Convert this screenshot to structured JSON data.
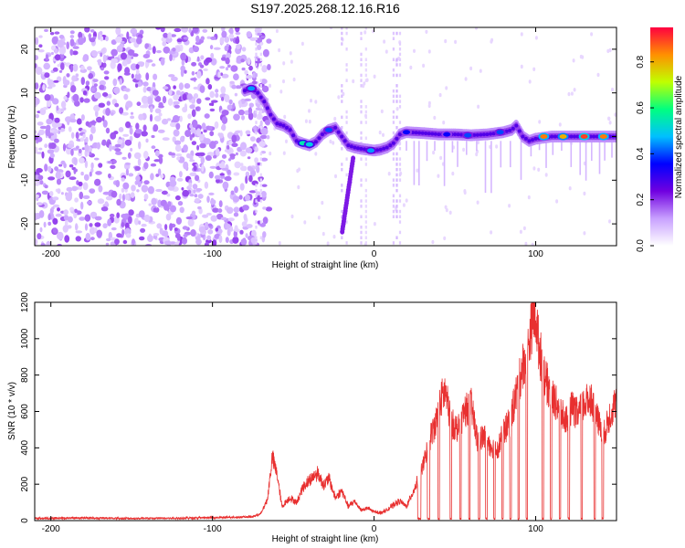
{
  "title": "S197.2025.268.12.16.R16",
  "chart_data": [
    {
      "type": "heatmap",
      "title": "S197.2025.268.12.16.R16",
      "xlabel": "Height of straight line (km)",
      "ylabel": "Frequency (Hz)",
      "xlim": [
        -210,
        150
      ],
      "ylim": [
        -25,
        25
      ],
      "xticks": [
        -200,
        -100,
        0,
        100
      ],
      "xticklabels": [
        "-200",
        "-100",
        "0",
        "100"
      ],
      "yticks": [
        -20,
        -10,
        0,
        10,
        20
      ],
      "yticklabels": [
        "-20",
        "-10",
        "0",
        "10",
        "20"
      ],
      "colorbar": {
        "label": "Normalized spectral amplitude",
        "range": [
          0.0,
          0.95
        ],
        "ticks": [
          0.0,
          0.2,
          0.4,
          0.6,
          0.8
        ],
        "ticklabels": [
          "0.0",
          "0.2",
          "0.4",
          "0.6",
          "0.8"
        ],
        "colormap": [
          "#ffffff",
          "#c8a0ff",
          "#7000e0",
          "#0000ff",
          "#00c0ff",
          "#00ff80",
          "#c0ff00",
          "#ff9000",
          "#ff0040"
        ]
      },
      "noise_region_x": [
        -210,
        -65
      ],
      "ridge": [
        [
          -80,
          10.5
        ],
        [
          -76,
          11.0
        ],
        [
          -72,
          10.0
        ],
        [
          -68,
          8.0
        ],
        [
          -64,
          5.0
        ],
        [
          -60,
          3.0
        ],
        [
          -56,
          2.5
        ],
        [
          -52,
          1.5
        ],
        [
          -48,
          -1.0
        ],
        [
          -44,
          -1.6
        ],
        [
          -40,
          -2.0
        ],
        [
          -36,
          -1.2
        ],
        [
          -32,
          0.5
        ],
        [
          -28,
          1.5
        ],
        [
          -24,
          2.0
        ],
        [
          -20,
          0.0
        ],
        [
          -16,
          -2.0
        ],
        [
          -12,
          -2.5
        ],
        [
          -8,
          -2.8
        ],
        [
          -4,
          -3.0
        ],
        [
          0,
          -3.2
        ],
        [
          4,
          -3.0
        ],
        [
          8,
          -2.5
        ],
        [
          12,
          -1.5
        ],
        [
          16,
          0.5
        ],
        [
          20,
          1.0
        ],
        [
          30,
          0.8
        ],
        [
          40,
          0.5
        ],
        [
          50,
          0.5
        ],
        [
          60,
          0.3
        ],
        [
          70,
          0.5
        ],
        [
          80,
          1.0
        ],
        [
          85,
          1.5
        ],
        [
          88,
          2.5
        ],
        [
          92,
          0.0
        ],
        [
          96,
          -1.0
        ],
        [
          100,
          -0.5
        ],
        [
          110,
          0.0
        ],
        [
          120,
          0.0
        ],
        [
          130,
          0.0
        ],
        [
          140,
          0.0
        ],
        [
          150,
          0.0
        ]
      ],
      "hotspots": [
        {
          "x": -76,
          "y": 11,
          "v": 0.45
        },
        {
          "x": -44,
          "y": -1.5,
          "v": 0.55
        },
        {
          "x": -40,
          "y": -1.8,
          "v": 0.5
        },
        {
          "x": -28,
          "y": 1.5,
          "v": 0.4
        },
        {
          "x": -2,
          "y": -3.2,
          "v": 0.45
        },
        {
          "x": 20,
          "y": 1,
          "v": 0.35
        },
        {
          "x": 45,
          "y": 0.5,
          "v": 0.35
        },
        {
          "x": 58,
          "y": 0.3,
          "v": 0.4
        },
        {
          "x": 78,
          "y": 1,
          "v": 0.4
        },
        {
          "x": 105,
          "y": 0,
          "v": 0.85
        },
        {
          "x": 117,
          "y": 0,
          "v": 0.8
        },
        {
          "x": 130,
          "y": 0,
          "v": 0.9
        },
        {
          "x": 142,
          "y": 0,
          "v": 0.85
        }
      ]
    },
    {
      "type": "line",
      "xlabel": "Height of straight line (km)",
      "ylabel": "SNR (10 * v/v)",
      "xlim": [
        -210,
        150
      ],
      "ylim": [
        0,
        1200
      ],
      "xticks": [
        -200,
        -100,
        0,
        100
      ],
      "xticklabels": [
        "-200",
        "-100",
        "0",
        "100"
      ],
      "yticks": [
        0,
        200,
        400,
        600,
        800,
        1000,
        1200
      ],
      "yticklabels": [
        "0",
        "200",
        "400",
        "600",
        "800",
        "1000",
        "1200"
      ],
      "series": [
        {
          "name": "SNR",
          "color": "#e83030",
          "points": [
            [
              -210,
              12
            ],
            [
              -180,
              15
            ],
            [
              -150,
              12
            ],
            [
              -120,
              14
            ],
            [
              -90,
              18
            ],
            [
              -75,
              22
            ],
            [
              -70,
              40
            ],
            [
              -66,
              120
            ],
            [
              -63,
              360
            ],
            [
              -60,
              260
            ],
            [
              -57,
              80
            ],
            [
              -52,
              130
            ],
            [
              -48,
              100
            ],
            [
              -44,
              190
            ],
            [
              -40,
              230
            ],
            [
              -35,
              270
            ],
            [
              -31,
              200
            ],
            [
              -28,
              240
            ],
            [
              -24,
              130
            ],
            [
              -20,
              170
            ],
            [
              -16,
              80
            ],
            [
              -12,
              110
            ],
            [
              -8,
              60
            ],
            [
              -4,
              70
            ],
            [
              0,
              50
            ],
            [
              4,
              45
            ],
            [
              8,
              60
            ],
            [
              12,
              90
            ],
            [
              16,
              110
            ],
            [
              20,
              80
            ],
            [
              25,
              180
            ],
            [
              30,
              300
            ],
            [
              35,
              480
            ],
            [
              38,
              550
            ],
            [
              42,
              700
            ],
            [
              44,
              730
            ],
            [
              48,
              550
            ],
            [
              52,
              520
            ],
            [
              56,
              620
            ],
            [
              60,
              660
            ],
            [
              64,
              450
            ],
            [
              68,
              480
            ],
            [
              72,
              420
            ],
            [
              76,
              400
            ],
            [
              80,
              500
            ],
            [
              84,
              560
            ],
            [
              88,
              720
            ],
            [
              92,
              880
            ],
            [
              95,
              950
            ],
            [
              98,
              1140
            ],
            [
              100,
              1170
            ],
            [
              102,
              980
            ],
            [
              106,
              800
            ],
            [
              110,
              700
            ],
            [
              114,
              650
            ],
            [
              118,
              560
            ],
            [
              122,
              640
            ],
            [
              126,
              600
            ],
            [
              130,
              660
            ],
            [
              134,
              700
            ],
            [
              138,
              580
            ],
            [
              142,
              480
            ],
            [
              146,
              600
            ],
            [
              150,
              680
            ]
          ],
          "gap_bands": [
            [
              27,
              29
            ],
            [
              33,
              34.5
            ],
            [
              39.5,
              40.5
            ],
            [
              47,
              48
            ],
            [
              53,
              54
            ],
            [
              58.5,
              59.5
            ],
            [
              64.5,
              65.5
            ],
            [
              69,
              70
            ],
            [
              74,
              75
            ],
            [
              79,
              80
            ],
            [
              84,
              85
            ],
            [
              89,
              90
            ],
            [
              94,
              95
            ],
            [
              104,
              105
            ],
            [
              109,
              110
            ],
            [
              114.5,
              115.5
            ],
            [
              120,
              121
            ],
            [
              128,
              129
            ],
            [
              136,
              137
            ],
            [
              141,
              142
            ]
          ]
        }
      ]
    }
  ]
}
